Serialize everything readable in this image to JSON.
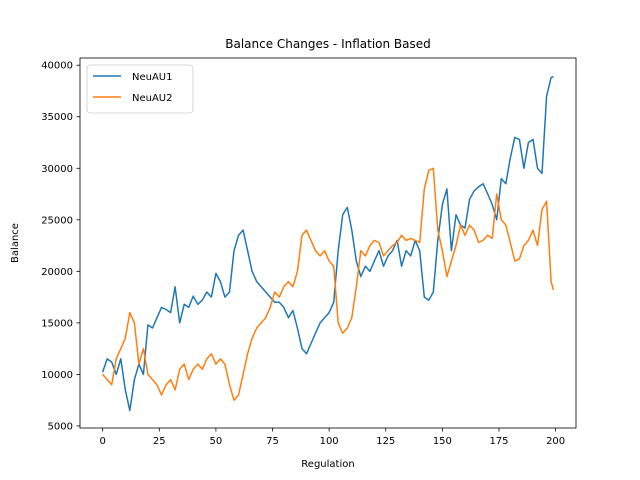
{
  "chart_data": {
    "type": "line",
    "title": "Balance Changes - Inflation Based",
    "xlabel": "Regulation",
    "ylabel": "Balance",
    "xlim": [
      -10,
      209
    ],
    "ylim": [
      4800,
      40700
    ],
    "xticks": [
      0,
      25,
      50,
      75,
      100,
      125,
      150,
      175,
      200
    ],
    "yticks": [
      5000,
      10000,
      15000,
      20000,
      25000,
      30000,
      35000,
      40000
    ],
    "grid": false,
    "legend_position": "upper left",
    "series": [
      {
        "name": "NeuAU1",
        "color": "#1f77b4",
        "x": [
          0,
          2,
          4,
          6,
          8,
          10,
          12,
          14,
          16,
          18,
          20,
          22,
          24,
          26,
          28,
          30,
          32,
          34,
          36,
          38,
          40,
          42,
          44,
          46,
          48,
          50,
          52,
          54,
          56,
          58,
          60,
          62,
          64,
          66,
          68,
          70,
          72,
          74,
          76,
          78,
          80,
          82,
          84,
          86,
          88,
          90,
          92,
          94,
          96,
          98,
          100,
          102,
          104,
          106,
          108,
          110,
          112,
          114,
          116,
          118,
          120,
          122,
          124,
          126,
          128,
          130,
          132,
          134,
          136,
          138,
          140,
          142,
          144,
          146,
          148,
          150,
          152,
          154,
          156,
          158,
          160,
          162,
          164,
          166,
          168,
          170,
          172,
          174,
          176,
          178,
          180,
          182,
          184,
          186,
          188,
          190,
          192,
          194,
          196,
          198,
          199
        ],
        "values": [
          10200,
          11500,
          11200,
          10000,
          11500,
          8500,
          6500,
          9500,
          11000,
          10000,
          14800,
          14500,
          15500,
          16500,
          16300,
          16000,
          18500,
          15000,
          16800,
          16500,
          17600,
          16800,
          17200,
          18000,
          17500,
          19800,
          19000,
          17500,
          18000,
          22000,
          23500,
          24000,
          22000,
          20000,
          19000,
          18500,
          18000,
          17500,
          17000,
          17000,
          16500,
          15500,
          16200,
          14500,
          12500,
          12000,
          13000,
          14000,
          15000,
          15500,
          16000,
          17000,
          22000,
          25500,
          26200,
          24000,
          21000,
          19500,
          20500,
          20000,
          21000,
          22000,
          20500,
          21500,
          22000,
          23000,
          20500,
          22000,
          21500,
          23000,
          22000,
          17500,
          17200,
          18000,
          23000,
          26500,
          28000,
          22000,
          25500,
          24500,
          24200,
          27000,
          27800,
          28200,
          28500,
          27500,
          26500,
          25000,
          29000,
          28500,
          31000,
          33000,
          32800,
          30000,
          32500,
          32800,
          30000,
          29500,
          37000,
          38800,
          38900
        ]
      },
      {
        "name": "NeuAU2",
        "color": "#ff7f0e",
        "x": [
          0,
          2,
          4,
          6,
          8,
          10,
          12,
          14,
          16,
          18,
          20,
          22,
          24,
          26,
          28,
          30,
          32,
          34,
          36,
          38,
          40,
          42,
          44,
          46,
          48,
          50,
          52,
          54,
          56,
          58,
          60,
          62,
          64,
          66,
          68,
          70,
          72,
          74,
          76,
          78,
          80,
          82,
          84,
          86,
          88,
          90,
          92,
          94,
          96,
          98,
          100,
          102,
          104,
          106,
          108,
          110,
          112,
          114,
          116,
          118,
          120,
          122,
          124,
          126,
          128,
          130,
          132,
          134,
          136,
          138,
          140,
          142,
          144,
          146,
          148,
          150,
          152,
          154,
          156,
          158,
          160,
          162,
          164,
          166,
          168,
          170,
          172,
          174,
          176,
          178,
          180,
          182,
          184,
          186,
          188,
          190,
          192,
          194,
          196,
          198,
          199
        ],
        "values": [
          10000,
          9500,
          9000,
          11500,
          12500,
          13500,
          16000,
          15000,
          11000,
          12500,
          10000,
          9500,
          9000,
          8000,
          9000,
          9500,
          8500,
          10500,
          11000,
          9500,
          10500,
          11000,
          10500,
          11500,
          12000,
          11000,
          11500,
          11000,
          9000,
          7500,
          8000,
          10000,
          12000,
          13500,
          14500,
          15000,
          15500,
          16500,
          18000,
          17500,
          18500,
          19000,
          18500,
          20000,
          23500,
          24000,
          23000,
          22000,
          21500,
          22000,
          21000,
          20500,
          15000,
          14000,
          14500,
          15500,
          18500,
          22000,
          21500,
          22500,
          23000,
          22800,
          21500,
          22000,
          22500,
          22800,
          23500,
          23000,
          23200,
          23000,
          22800,
          28000,
          29800,
          30000,
          24000,
          22000,
          19500,
          21000,
          22500,
          24500,
          23500,
          24500,
          24000,
          22800,
          23000,
          23500,
          23200,
          27500,
          25000,
          24500,
          22800,
          21000,
          21200,
          22500,
          23000,
          24000,
          22500,
          26000,
          26800,
          19000,
          18200
        ]
      }
    ]
  }
}
